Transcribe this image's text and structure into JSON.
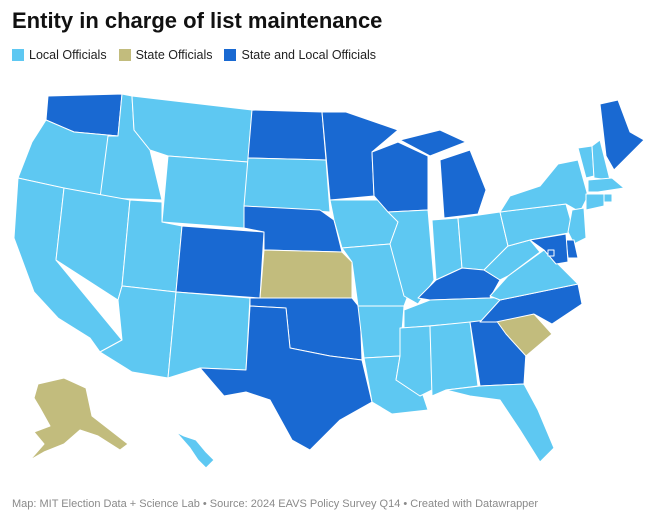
{
  "title": "Entity in charge of list maintenance",
  "legend": [
    {
      "label": "Local Officials",
      "color": "#5ec8f2"
    },
    {
      "label": "State Officials",
      "color": "#c2bc7d"
    },
    {
      "label": "State and Local Officials",
      "color": "#1969d2"
    }
  ],
  "colors": {
    "local": "#5ec8f2",
    "state": "#c2bc7d",
    "both": "#1969d2"
  },
  "footer": "Map: MIT Election Data + Science Lab • Source: 2024 EAVS Policy Survey Q14 • Created with Datawrapper",
  "state_categories": {
    "WA": "both",
    "OR": "local",
    "CA": "local",
    "ID": "local",
    "NV": "local",
    "MT": "local",
    "WY": "local",
    "UT": "local",
    "AZ": "local",
    "CO": "both",
    "NM": "local",
    "ND": "both",
    "SD": "local",
    "NE": "both",
    "KS": "state",
    "OK": "both",
    "TX": "both",
    "MN": "both",
    "IA": "local",
    "MO": "local",
    "AR": "local",
    "LA": "local",
    "WI": "both",
    "IL": "local",
    "MI": "both",
    "IN": "local",
    "OH": "local",
    "KY": "both",
    "TN": "local",
    "MS": "local",
    "AL": "local",
    "GA": "both",
    "FL": "local",
    "SC": "state",
    "NC": "both",
    "VA": "local",
    "WV": "local",
    "PA": "local",
    "NY": "local",
    "VT": "local",
    "NH": "local",
    "ME": "both",
    "MA": "local",
    "RI": "local",
    "CT": "local",
    "NJ": "local",
    "DE": "both",
    "MD": "both",
    "DC": "both",
    "AK": "state",
    "HI": "local"
  }
}
